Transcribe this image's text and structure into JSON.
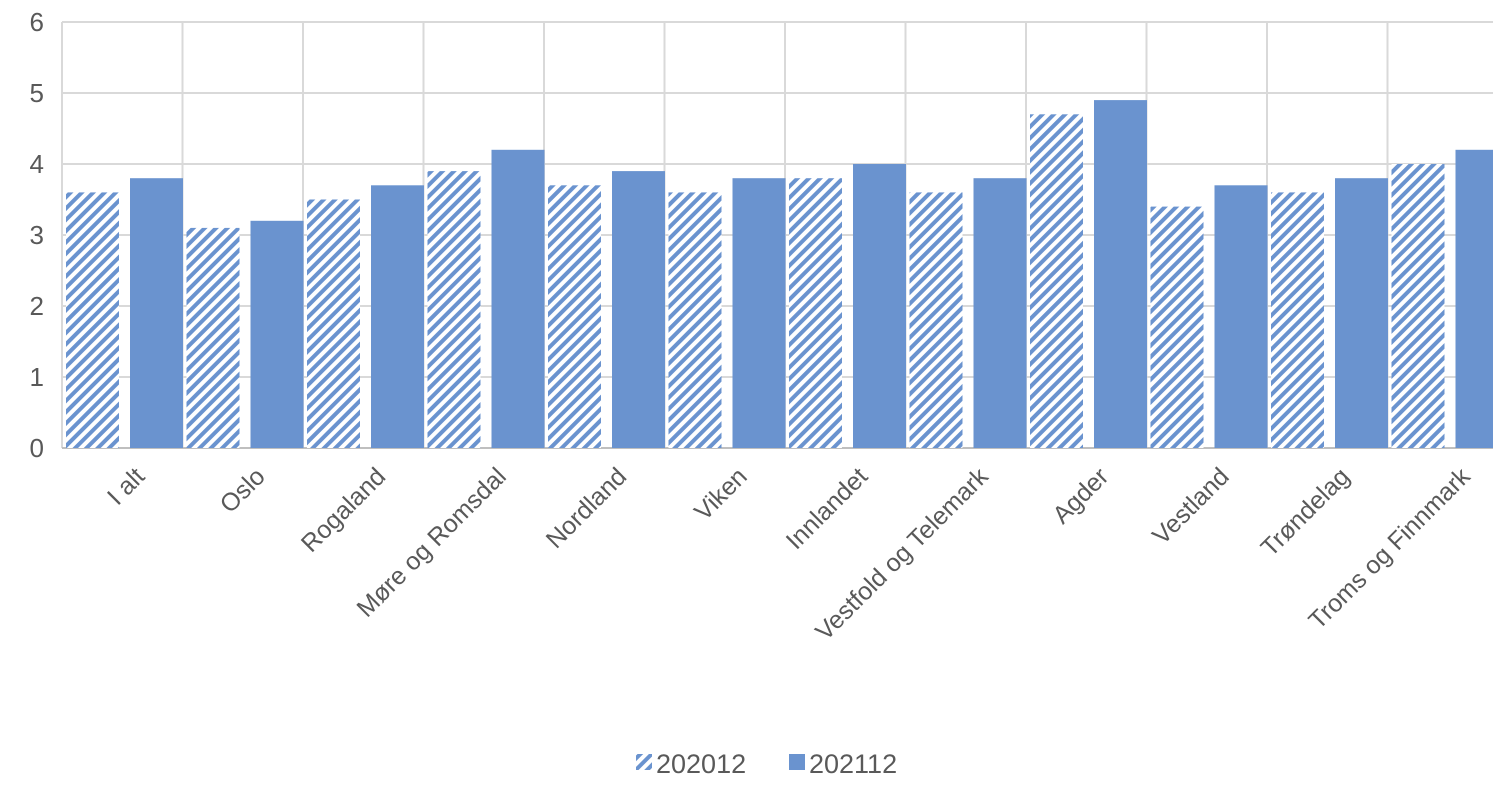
{
  "chart_data": {
    "type": "bar",
    "categories": [
      "I alt",
      "Oslo",
      "Rogaland",
      "Møre og Romsdal",
      "Nordland",
      "Viken",
      "Innlandet",
      "Vestfold og Telemark",
      "Agder",
      "Vestland",
      "Trøndelag",
      "Troms og Finnmark"
    ],
    "series": [
      {
        "name": "202012",
        "values": [
          3.6,
          3.1,
          3.5,
          3.9,
          3.7,
          3.6,
          3.8,
          3.6,
          4.7,
          3.4,
          3.6,
          4.0
        ],
        "color": "#6a93cf",
        "pattern": "diagonal-hatch"
      },
      {
        "name": "202112",
        "values": [
          3.8,
          3.2,
          3.7,
          4.2,
          3.9,
          3.8,
          4.0,
          3.8,
          4.9,
          3.7,
          3.8,
          4.2
        ],
        "color": "#6a93cf",
        "pattern": "solid"
      }
    ],
    "title": "",
    "xlabel": "",
    "ylabel": "",
    "ylim": [
      0,
      6
    ],
    "yticks": [
      "0",
      "1",
      "2",
      "3",
      "4",
      "5",
      "6"
    ],
    "grid": true,
    "legend_position": "bottom"
  },
  "colors": {
    "bar": "#6a93cf",
    "grid": "#d9d9d9",
    "axis": "#bfbfbf",
    "text": "#595959"
  }
}
